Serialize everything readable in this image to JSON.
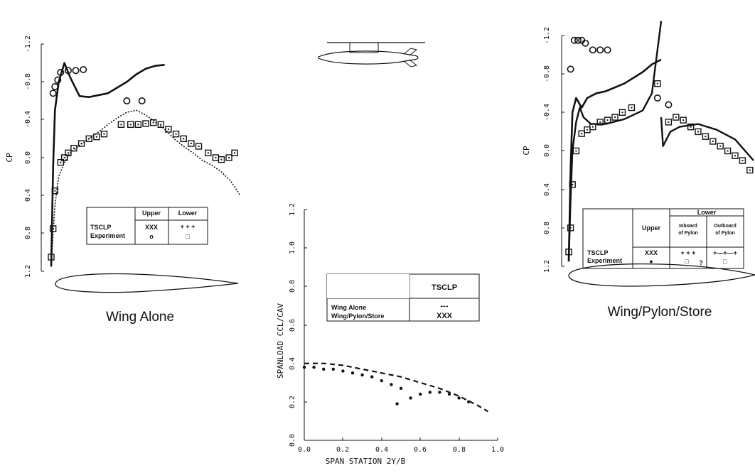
{
  "chart_data": [
    {
      "type": "scatter",
      "ylabel": "CP",
      "ylim": [
        1.2,
        -1.2
      ],
      "yticks": [
        "-1.2",
        "-0.8",
        "-0.4",
        "0.0",
        "0.4",
        "0.8",
        "1.2"
      ],
      "caption": "Wing Alone",
      "legend": {
        "col_upper": "Upper",
        "col_lower": "Lower",
        "row_tsclp": "TSCLP",
        "row_exp": "Experiment",
        "tsclp_upper": "XXX",
        "tsclp_lower": "+ + +",
        "exp_upper": "o",
        "exp_lower": "□"
      },
      "series": [
        {
          "name": "TSCLP upper",
          "x": [
            0.0,
            0.01,
            0.02,
            0.04,
            0.07,
            0.1,
            0.15,
            0.2,
            0.3,
            0.4,
            0.45,
            0.5,
            0.55,
            0.6
          ],
          "y": [
            1.15,
            0.1,
            -0.5,
            -0.8,
            -1.0,
            -0.85,
            -0.65,
            -0.64,
            -0.68,
            -0.8,
            -0.88,
            -0.94,
            -0.97,
            -0.98
          ]
        },
        {
          "name": "TSCLP lower",
          "x": [
            0.0,
            0.01,
            0.02,
            0.04,
            0.07,
            0.1,
            0.15,
            0.2,
            0.25,
            0.3,
            0.35,
            0.4,
            0.45,
            0.5,
            0.55,
            0.6,
            0.65,
            0.7,
            0.75,
            0.8,
            0.85,
            0.9,
            0.95,
            1.0
          ],
          "y": [
            1.15,
            0.8,
            0.5,
            0.2,
            0.05,
            -0.05,
            -0.13,
            -0.2,
            -0.27,
            -0.35,
            -0.42,
            -0.48,
            -0.5,
            -0.45,
            -0.38,
            -0.3,
            -0.2,
            -0.12,
            -0.05,
            0.03,
            0.08,
            0.15,
            0.25,
            0.4
          ]
        },
        {
          "name": "Experiment upper",
          "x": [
            0.01,
            0.02,
            0.035,
            0.05,
            0.09,
            0.13,
            0.17,
            0.4,
            0.48
          ],
          "y": [
            -0.68,
            -0.75,
            -0.82,
            -0.9,
            -0.92,
            -0.92,
            -0.93,
            -0.6,
            -0.6
          ]
        },
        {
          "name": "Experiment lower",
          "x": [
            0.0,
            0.01,
            0.02,
            0.05,
            0.07,
            0.09,
            0.12,
            0.16,
            0.2,
            0.24,
            0.28,
            0.37,
            0.42,
            0.46,
            0.5,
            0.54,
            0.58,
            0.62,
            0.66,
            0.7,
            0.74,
            0.78,
            0.83,
            0.87,
            0.9,
            0.94,
            0.97
          ],
          "y": [
            1.05,
            0.75,
            0.35,
            0.05,
            0.0,
            -0.05,
            -0.1,
            -0.15,
            -0.2,
            -0.22,
            -0.25,
            -0.35,
            -0.35,
            -0.35,
            -0.36,
            -0.37,
            -0.35,
            -0.3,
            -0.25,
            -0.2,
            -0.15,
            -0.12,
            -0.05,
            0.0,
            0.02,
            0.0,
            -0.05
          ]
        }
      ]
    },
    {
      "type": "line",
      "xlabel": "SPAN STATION 2Y/B",
      "ylabel": "SPANLOAD CCL/CAV",
      "xlim": [
        0.0,
        1.0
      ],
      "ylim": [
        0.0,
        1.2
      ],
      "xticks": [
        "0.0",
        "0.2",
        "0.4",
        "0.6",
        "0.8",
        "1.0"
      ],
      "yticks": [
        "0.0",
        "0.2",
        "0.4",
        "0.6",
        "0.8",
        "1.0",
        "1.2"
      ],
      "legend": {
        "header": "TSCLP",
        "row1": "Wing Alone",
        "row2": "Wing/Pylon/Store",
        "row1_sym": "---",
        "row2_sym": "XXX"
      },
      "series": [
        {
          "name": "Wing Alone",
          "x": [
            0.0,
            0.1,
            0.2,
            0.3,
            0.4,
            0.5,
            0.6,
            0.7,
            0.8,
            0.9,
            0.95
          ],
          "y": [
            0.4,
            0.4,
            0.39,
            0.37,
            0.35,
            0.33,
            0.3,
            0.27,
            0.23,
            0.18,
            0.15
          ]
        },
        {
          "name": "Wing/Pylon/Store",
          "x": [
            0.0,
            0.05,
            0.1,
            0.15,
            0.2,
            0.25,
            0.3,
            0.35,
            0.4,
            0.45,
            0.5,
            0.48,
            0.55,
            0.6,
            0.65,
            0.7,
            0.75,
            0.8,
            0.85
          ],
          "y": [
            0.38,
            0.38,
            0.37,
            0.37,
            0.36,
            0.35,
            0.34,
            0.33,
            0.31,
            0.29,
            0.27,
            0.19,
            0.22,
            0.24,
            0.25,
            0.25,
            0.24,
            0.22,
            0.2
          ]
        }
      ]
    },
    {
      "type": "scatter",
      "ylabel": "CP",
      "ylim": [
        1.2,
        -1.2
      ],
      "yticks": [
        "-1.2",
        "-0.8",
        "-0.4",
        "0.0",
        "0.4",
        "0.8",
        "1.2"
      ],
      "caption": "Wing/Pylon/Store",
      "legend": {
        "col_upper": "Upper",
        "col_lower": "Lower",
        "sub_inboard_1": "Inboard",
        "sub_inboard_2": "of Pylon",
        "sub_outboard_1": "Outboard",
        "sub_outboard_2": "of Pylon",
        "row_tsclp": "TSCLP",
        "row_exp": "Experiment",
        "tsclp_upper": "XXX",
        "tsclp_inboard": "+ + +",
        "tsclp_outboard": "+—+—+",
        "exp_upper": "●",
        "exp_inboard": "□",
        "exp_q": "?",
        "exp_outboard": "□"
      },
      "series": [
        {
          "name": "TSCLP upper",
          "x": [
            0.0,
            0.01,
            0.02,
            0.04,
            0.07,
            0.1,
            0.15,
            0.2,
            0.3,
            0.4,
            0.45,
            0.5
          ],
          "y": [
            1.15,
            0.2,
            -0.4,
            -0.55,
            -0.45,
            -0.55,
            -0.6,
            -0.62,
            -0.7,
            -0.82,
            -0.9,
            -0.95
          ]
        },
        {
          "name": "TSCLP lower inboard",
          "x": [
            0.0,
            0.01,
            0.02,
            0.04,
            0.06,
            0.08,
            0.12,
            0.2,
            0.3,
            0.4,
            0.45,
            0.5
          ],
          "y": [
            1.15,
            0.5,
            0.0,
            -0.3,
            -0.45,
            -0.35,
            -0.28,
            -0.28,
            -0.33,
            -0.42,
            -0.6,
            -1.35
          ]
        },
        {
          "name": "TSCLP lower outboard",
          "x": [
            0.5,
            0.51,
            0.55,
            0.6,
            0.7,
            0.8,
            0.9,
            1.0
          ],
          "y": [
            -0.35,
            -0.05,
            -0.2,
            -0.25,
            -0.28,
            -0.22,
            -0.12,
            0.1
          ]
        },
        {
          "name": "Experiment upper",
          "x": [
            0.01,
            0.03,
            0.05,
            0.07,
            0.09,
            0.13,
            0.17,
            0.21,
            0.48,
            0.54
          ],
          "y": [
            -0.85,
            -1.15,
            -1.15,
            -1.15,
            -1.12,
            -1.05,
            -1.05,
            -1.05,
            -0.55,
            -0.48
          ]
        },
        {
          "name": "Experiment lower inboard",
          "x": [
            0.0,
            0.01,
            0.02,
            0.04,
            0.07,
            0.1,
            0.13,
            0.17,
            0.21,
            0.25,
            0.29,
            0.34,
            0.48
          ],
          "y": [
            1.05,
            0.8,
            0.35,
            0.0,
            -0.18,
            -0.22,
            -0.25,
            -0.3,
            -0.32,
            -0.35,
            -0.4,
            -0.45,
            -0.7
          ]
        },
        {
          "name": "Experiment lower outboard",
          "x": [
            0.54,
            0.58,
            0.62,
            0.66,
            0.7,
            0.74,
            0.78,
            0.82,
            0.86,
            0.9,
            0.94,
            0.98
          ],
          "y": [
            -0.3,
            -0.35,
            -0.32,
            -0.25,
            -0.2,
            -0.15,
            -0.1,
            -0.05,
            0.0,
            0.05,
            0.1,
            0.2
          ]
        }
      ]
    }
  ]
}
